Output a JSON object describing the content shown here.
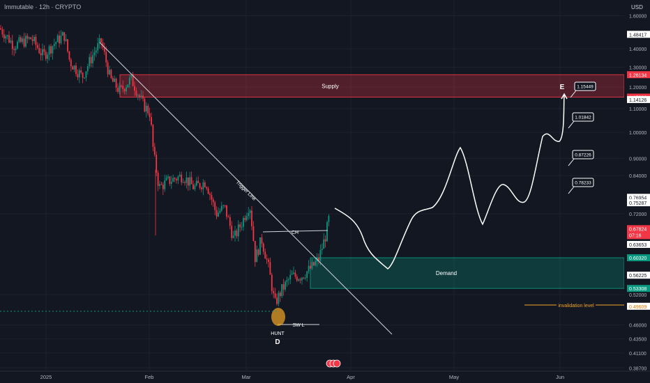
{
  "header": {
    "title": "Immutable · 12h · CRYPTO",
    "currency": "USD"
  },
  "chart_data": {
    "type": "candlestick",
    "y_scale": "log",
    "ylim": [
      0.37,
      1.68
    ],
    "x_ticks": [
      "2025",
      "Feb",
      "Mar",
      "Apr",
      "May",
      "Jun"
    ],
    "y_ticks": [
      "1.60000",
      "1.40000",
      "1.30000",
      "1.20000",
      "1.10000",
      "1.00000",
      "0.90000",
      "0.84000",
      "0.72000",
      "0.52000",
      "0.46000",
      "0.43500",
      "0.41100",
      "0.38700"
    ],
    "price_labels": [
      {
        "value": "1.48417",
        "kind": "plain"
      },
      {
        "value": "1.26134",
        "kind": "red"
      },
      {
        "value": "1.15236",
        "kind": "red"
      },
      {
        "value": "1.14126",
        "kind": "plain"
      },
      {
        "value": "0.76954",
        "kind": "plain"
      },
      {
        "value": "0.75287",
        "kind": "plain"
      },
      {
        "value": "0.67824",
        "kind": "red",
        "sub": "07:16"
      },
      {
        "value": "0.63653",
        "kind": "plain"
      },
      {
        "value": "0.60320",
        "kind": "green"
      },
      {
        "value": "0.56225",
        "kind": "plain"
      },
      {
        "value": "0.53308",
        "kind": "green"
      },
      {
        "value": "0.49609",
        "kind": "orange"
      }
    ],
    "zones": [
      {
        "label": "Supply",
        "low": 1.15236,
        "high": 1.26134,
        "color": "#f23645"
      },
      {
        "label": "Demand",
        "low": 0.53308,
        "high": 0.6032,
        "color": "#089981"
      }
    ],
    "annotations": {
      "trigger_line": "Trigger Line",
      "change_of_character": "CH",
      "swing_low": "SW L",
      "hunt": "HUNT",
      "point_d": "D",
      "point_e": "E",
      "invalidation": "invalidation level",
      "targets": [
        "1.15449",
        "1.01842",
        "0.87226",
        "0.78233"
      ]
    },
    "colors": {
      "up": "#089981",
      "down": "#f23645",
      "bg": "#131722"
    }
  }
}
